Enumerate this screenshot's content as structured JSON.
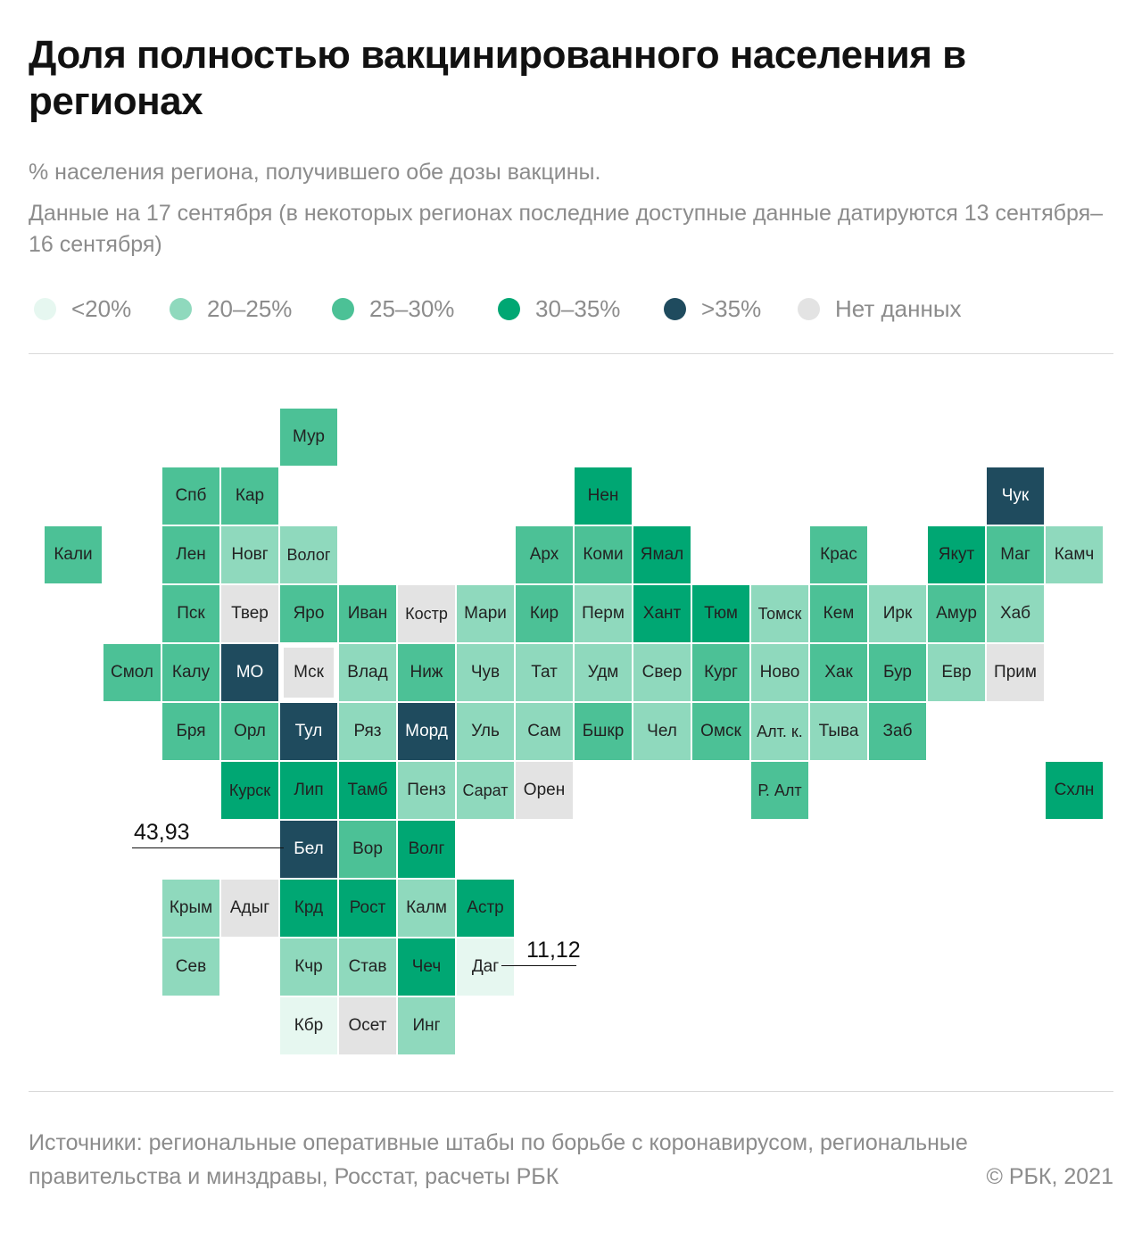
{
  "header": {
    "title": "Доля полностью вакцинированного населения в регионах",
    "subtitle": "% населения региона, получившего обе дозы вакцины.",
    "note": "Данные на 17 сентября (в некоторых регионах последние доступные данные датируются 13 сентября–16 сентября)"
  },
  "legend": [
    {
      "label": "<20%",
      "color": "#e6f7f0"
    },
    {
      "label": "20–25%",
      "color": "#8fd9bd"
    },
    {
      "label": "25–30%",
      "color": "#4cc196"
    },
    {
      "label": "30–35%",
      "color": "#00a773"
    },
    {
      "label": ">35%",
      "color": "#1f4b5e"
    },
    {
      "label": "Нет данных",
      "color": "#e3e3e3"
    }
  ],
  "map": {
    "regions": [
      {
        "label": "Мур",
        "row": 0,
        "col": 5,
        "category": 2
      },
      {
        "label": "Спб",
        "row": 1,
        "col": 3,
        "category": 2
      },
      {
        "label": "Кар",
        "row": 1,
        "col": 4,
        "category": 2
      },
      {
        "label": "Нен",
        "row": 1,
        "col": 10,
        "category": 3
      },
      {
        "label": "Чук",
        "row": 1,
        "col": 17,
        "category": 4
      },
      {
        "label": "Кали",
        "row": 2,
        "col": 1,
        "category": 2
      },
      {
        "label": "Лен",
        "row": 2,
        "col": 3,
        "category": 2
      },
      {
        "label": "Новг",
        "row": 2,
        "col": 4,
        "category": 1
      },
      {
        "label": "Волог",
        "row": 2,
        "col": 5,
        "category": 1
      },
      {
        "label": "Арх",
        "row": 2,
        "col": 9,
        "category": 2
      },
      {
        "label": "Коми",
        "row": 2,
        "col": 10,
        "category": 2
      },
      {
        "label": "Ямал",
        "row": 2,
        "col": 11,
        "category": 3
      },
      {
        "label": "Крас",
        "row": 2,
        "col": 14,
        "category": 2
      },
      {
        "label": "Якут",
        "row": 2,
        "col": 16,
        "category": 3
      },
      {
        "label": "Маг",
        "row": 2,
        "col": 17,
        "category": 2
      },
      {
        "label": "Камч",
        "row": 2,
        "col": 18,
        "category": 1
      },
      {
        "label": "Пск",
        "row": 3,
        "col": 3,
        "category": 2
      },
      {
        "label": "Твер",
        "row": 3,
        "col": 4,
        "category": 5
      },
      {
        "label": "Яро",
        "row": 3,
        "col": 5,
        "category": 2
      },
      {
        "label": "Иван",
        "row": 3,
        "col": 6,
        "category": 2
      },
      {
        "label": "Костр",
        "row": 3,
        "col": 7,
        "category": 5
      },
      {
        "label": "Мари",
        "row": 3,
        "col": 8,
        "category": 1
      },
      {
        "label": "Кир",
        "row": 3,
        "col": 9,
        "category": 2
      },
      {
        "label": "Перм",
        "row": 3,
        "col": 10,
        "category": 1
      },
      {
        "label": "Хант",
        "row": 3,
        "col": 11,
        "category": 3
      },
      {
        "label": "Тюм",
        "row": 3,
        "col": 12,
        "category": 3
      },
      {
        "label": "Томск",
        "row": 3,
        "col": 13,
        "category": 1
      },
      {
        "label": "Кем",
        "row": 3,
        "col": 14,
        "category": 2
      },
      {
        "label": "Ирк",
        "row": 3,
        "col": 15,
        "category": 1
      },
      {
        "label": "Амур",
        "row": 3,
        "col": 16,
        "category": 2
      },
      {
        "label": "Хаб",
        "row": 3,
        "col": 17,
        "category": 1
      },
      {
        "label": "Смол",
        "row": 4,
        "col": 2,
        "category": 2
      },
      {
        "label": "Калу",
        "row": 4,
        "col": 3,
        "category": 2
      },
      {
        "label": "МО",
        "row": 4,
        "col": 4,
        "category": 4
      },
      {
        "label": "Мск",
        "row": 4,
        "col": 5,
        "category": 5,
        "outlined": true
      },
      {
        "label": "Влад",
        "row": 4,
        "col": 6,
        "category": 1
      },
      {
        "label": "Ниж",
        "row": 4,
        "col": 7,
        "category": 2
      },
      {
        "label": "Чув",
        "row": 4,
        "col": 8,
        "category": 1
      },
      {
        "label": "Тат",
        "row": 4,
        "col": 9,
        "category": 1
      },
      {
        "label": "Удм",
        "row": 4,
        "col": 10,
        "category": 1
      },
      {
        "label": "Свер",
        "row": 4,
        "col": 11,
        "category": 1
      },
      {
        "label": "Кург",
        "row": 4,
        "col": 12,
        "category": 2
      },
      {
        "label": "Ново",
        "row": 4,
        "col": 13,
        "category": 1
      },
      {
        "label": "Хак",
        "row": 4,
        "col": 14,
        "category": 2
      },
      {
        "label": "Бур",
        "row": 4,
        "col": 15,
        "category": 2
      },
      {
        "label": "Евр",
        "row": 4,
        "col": 16,
        "category": 1
      },
      {
        "label": "Прим",
        "row": 4,
        "col": 17,
        "category": 5
      },
      {
        "label": "Бря",
        "row": 5,
        "col": 3,
        "category": 2
      },
      {
        "label": "Орл",
        "row": 5,
        "col": 4,
        "category": 2
      },
      {
        "label": "Тул",
        "row": 5,
        "col": 5,
        "category": 4
      },
      {
        "label": "Ряз",
        "row": 5,
        "col": 6,
        "category": 1
      },
      {
        "label": "Морд",
        "row": 5,
        "col": 7,
        "category": 4
      },
      {
        "label": "Уль",
        "row": 5,
        "col": 8,
        "category": 1
      },
      {
        "label": "Сам",
        "row": 5,
        "col": 9,
        "category": 1
      },
      {
        "label": "Бшкр",
        "row": 5,
        "col": 10,
        "category": 2
      },
      {
        "label": "Чел",
        "row": 5,
        "col": 11,
        "category": 1
      },
      {
        "label": "Омск",
        "row": 5,
        "col": 12,
        "category": 2
      },
      {
        "label": "Алт. к.",
        "row": 5,
        "col": 13,
        "category": 1
      },
      {
        "label": "Тыва",
        "row": 5,
        "col": 14,
        "category": 1
      },
      {
        "label": "Заб",
        "row": 5,
        "col": 15,
        "category": 2
      },
      {
        "label": "Курск",
        "row": 6,
        "col": 4,
        "category": 3
      },
      {
        "label": "Лип",
        "row": 6,
        "col": 5,
        "category": 3
      },
      {
        "label": "Тамб",
        "row": 6,
        "col": 6,
        "category": 3
      },
      {
        "label": "Пенз",
        "row": 6,
        "col": 7,
        "category": 1
      },
      {
        "label": "Сарат",
        "row": 6,
        "col": 8,
        "category": 1
      },
      {
        "label": "Орен",
        "row": 6,
        "col": 9,
        "category": 5
      },
      {
        "label": "Р. Алт",
        "row": 6,
        "col": 13,
        "category": 2
      },
      {
        "label": "Схлн",
        "row": 6,
        "col": 18,
        "category": 3
      },
      {
        "label": "Бел",
        "row": 7,
        "col": 5,
        "category": 4
      },
      {
        "label": "Вор",
        "row": 7,
        "col": 6,
        "category": 2
      },
      {
        "label": "Волг",
        "row": 7,
        "col": 7,
        "category": 3
      },
      {
        "label": "Крым",
        "row": 8,
        "col": 3,
        "category": 1
      },
      {
        "label": "Адыг",
        "row": 8,
        "col": 4,
        "category": 5
      },
      {
        "label": "Крд",
        "row": 8,
        "col": 5,
        "category": 3
      },
      {
        "label": "Рост",
        "row": 8,
        "col": 6,
        "category": 3
      },
      {
        "label": "Калм",
        "row": 8,
        "col": 7,
        "category": 1
      },
      {
        "label": "Астр",
        "row": 8,
        "col": 8,
        "category": 3
      },
      {
        "label": "Сев",
        "row": 9,
        "col": 3,
        "category": 1
      },
      {
        "label": "Кчр",
        "row": 9,
        "col": 5,
        "category": 1
      },
      {
        "label": "Став",
        "row": 9,
        "col": 6,
        "category": 1
      },
      {
        "label": "Чеч",
        "row": 9,
        "col": 7,
        "category": 3
      },
      {
        "label": "Даг",
        "row": 9,
        "col": 8,
        "category": 0
      },
      {
        "label": "Кбр",
        "row": 10,
        "col": 5,
        "category": 0
      },
      {
        "label": "Осет",
        "row": 10,
        "col": 6,
        "category": 5
      },
      {
        "label": "Инг",
        "row": 10,
        "col": 7,
        "category": 1
      }
    ],
    "callouts": [
      {
        "value": "43,93",
        "region": "Бел"
      },
      {
        "value": "11,12",
        "region": "Даг"
      }
    ]
  },
  "footer": {
    "sources": "Источники: региональные оперативные штабы по борьбе с коронавирусом, региональные правительства и минздравы, Росстат, расчеты РБК",
    "copyright": "©  РБК, 2021"
  }
}
